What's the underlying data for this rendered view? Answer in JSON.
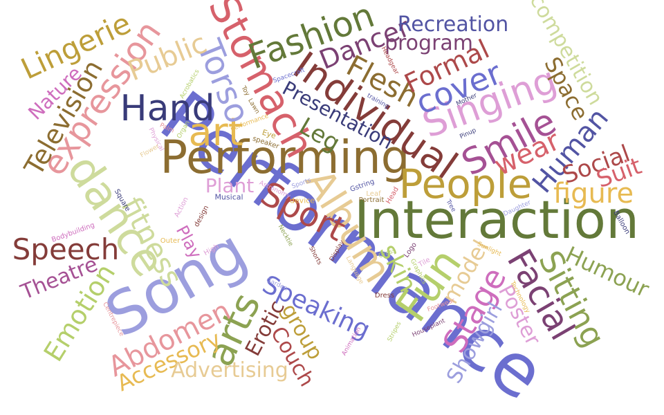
{
  "words": [
    {
      "text": "Performance",
      "color": "#6b6ecf"
    },
    {
      "text": "Interaction",
      "color": "#637939"
    },
    {
      "text": "Performing",
      "color": "#8c6d31"
    },
    {
      "text": "Song",
      "color": "#9c9ede"
    },
    {
      "text": "People",
      "color": "#bd9e39"
    },
    {
      "text": "Individual",
      "color": "#843c39"
    },
    {
      "text": "Stomach",
      "color": "#d6616b"
    },
    {
      "text": "Smile",
      "color": "#a55194"
    },
    {
      "text": "Singing",
      "color": "#de9ed6"
    },
    {
      "text": "Album",
      "color": "#e7cb94"
    },
    {
      "text": "Sport",
      "color": "#ad494a"
    },
    {
      "text": "Fun",
      "color": "#b5cf6b"
    },
    {
      "text": "dance",
      "color": "#cedb9c"
    },
    {
      "text": "Hand",
      "color": "#393b79"
    },
    {
      "text": "art",
      "color": "#e7ba52"
    },
    {
      "text": "Fashion",
      "color": "#637939"
    },
    {
      "text": "expression",
      "color": "#e7969c"
    },
    {
      "text": "Human",
      "color": "#5254a3"
    },
    {
      "text": "Facial",
      "color": "#7b4173"
    },
    {
      "text": "arts",
      "color": "#8ca252"
    },
    {
      "text": "Stage",
      "color": "#ce6dbd"
    },
    {
      "text": "Sitting",
      "color": "#8ca252"
    },
    {
      "text": "Torso",
      "color": "#9c9ede"
    },
    {
      "text": "cover",
      "color": "#6b6ecf"
    },
    {
      "text": "Flesh",
      "color": "#8c6d31"
    },
    {
      "text": "Formal",
      "color": "#ad494a"
    },
    {
      "text": "Dancer",
      "color": "#7b4173"
    },
    {
      "text": "Lingerie",
      "color": "#bd9e39"
    },
    {
      "text": "Public",
      "color": "#e7cb94"
    },
    {
      "text": "Speech",
      "color": "#843c39"
    },
    {
      "text": "fitness",
      "color": "#cedb9c"
    },
    {
      "text": "Television",
      "color": "#8c6d31"
    },
    {
      "text": "wear",
      "color": "#d6616b"
    },
    {
      "text": "figure",
      "color": "#e7ba52"
    },
    {
      "text": "Social",
      "color": "#ad494a"
    },
    {
      "text": "Suit",
      "color": "#d6616b"
    },
    {
      "text": "Speaking",
      "color": "#6b6ecf"
    },
    {
      "text": "Emotion",
      "color": "#b5cf6b"
    },
    {
      "text": "Abdomen",
      "color": "#e7969c"
    },
    {
      "text": "Humour",
      "color": "#8ca252"
    },
    {
      "text": "Recreation",
      "color": "#5254a3"
    },
    {
      "text": "program",
      "color": "#7b4173"
    },
    {
      "text": "competition",
      "color": "#cedb9c"
    },
    {
      "text": "Space",
      "color": "#8c6d31"
    },
    {
      "text": "Presentation",
      "color": "#393b79"
    },
    {
      "text": "Leg",
      "color": "#637939"
    },
    {
      "text": "Nature",
      "color": "#ce6dbd"
    },
    {
      "text": "Theatre",
      "color": "#a55194"
    },
    {
      "text": "Plant",
      "color": "#de9ed6"
    },
    {
      "text": "skin",
      "color": "#b5cf6b"
    },
    {
      "text": "model",
      "color": "#e7cb94"
    },
    {
      "text": "Showgirl",
      "color": "#9c9ede"
    },
    {
      "text": "Poster",
      "color": "#de9ed6"
    },
    {
      "text": "Accessory",
      "color": "#e7ba52"
    },
    {
      "text": "Advertising",
      "color": "#e7cb94"
    },
    {
      "text": "Erotic",
      "color": "#843c39"
    },
    {
      "text": "group",
      "color": "#bd9e39"
    },
    {
      "text": "Couch",
      "color": "#ad494a"
    },
    {
      "text": "Play",
      "color": "#ce6dbd"
    },
    {
      "text": "Musical",
      "color": "#5254a3"
    },
    {
      "text": "device",
      "color": "#e7ba52"
    },
    {
      "text": "Portrait",
      "color": "#8c6d31"
    },
    {
      "text": "Dress",
      "color": "#843c39"
    },
    {
      "text": "Bodybuilding",
      "color": "#ce6dbd"
    },
    {
      "text": "Outer",
      "color": "#e7ba52"
    },
    {
      "text": "Square",
      "color": "#393b79"
    },
    {
      "text": "Balloon",
      "color": "#393b79"
    },
    {
      "text": "Tree",
      "color": "#5254a3"
    },
    {
      "text": "Daughter",
      "color": "#9c9ede"
    },
    {
      "text": "Pinup",
      "color": "#393b79"
    },
    {
      "text": "Mother",
      "color": "#393b79"
    },
    {
      "text": "Gstring",
      "color": "#5254a3"
    },
    {
      "text": "Sports",
      "color": "#9c9ede"
    },
    {
      "text": "Astronomy",
      "color": "#de9ed6"
    },
    {
      "text": "speaker",
      "color": "#8c6d31"
    },
    {
      "text": "Eye",
      "color": "#bd9e39"
    },
    {
      "text": "performance",
      "color": "#e7ba52"
    },
    {
      "text": "Necktie",
      "color": "#8ca252"
    },
    {
      "text": "Display",
      "color": "#843c39"
    },
    {
      "text": "Language",
      "color": "#e7cb94"
    },
    {
      "text": "Logo",
      "color": "#7b4173"
    },
    {
      "text": "Graphics",
      "color": "#b5cf6b"
    },
    {
      "text": "Tile",
      "color": "#de9ed6"
    },
    {
      "text": "Leaf",
      "color": "#e7cb94"
    },
    {
      "text": "Head",
      "color": "#d6616b"
    },
    {
      "text": "Sunlight",
      "color": "#e7ba52"
    },
    {
      "text": "Technology",
      "color": "#e7ba52"
    },
    {
      "text": "Footwear",
      "color": "#e7969c"
    },
    {
      "text": "Houseplant",
      "color": "#7b4173"
    },
    {
      "text": "Animation",
      "color": "#ce6dbd"
    },
    {
      "text": "Garden",
      "color": "#9c9ede"
    },
    {
      "text": "Centrepiece",
      "color": "#e7969c"
    },
    {
      "text": "training",
      "color": "#5254a3"
    },
    {
      "text": "Headgear",
      "color": "#ad494a"
    },
    {
      "text": "Spacecraft",
      "color": "#6b6ecf"
    },
    {
      "text": "Acrobatics",
      "color": "#b5cf6b"
    },
    {
      "text": "Toy",
      "color": "#8c6d31"
    },
    {
      "text": "Lawn",
      "color": "#8c6d31"
    },
    {
      "text": "Palm",
      "color": "#e7969c"
    },
    {
      "text": "Physical",
      "color": "#de9ed6"
    },
    {
      "text": "Organ",
      "color": "#b5cf6b"
    },
    {
      "text": "Flower",
      "color": "#e7cb94"
    },
    {
      "text": "design",
      "color": "#843c39"
    },
    {
      "text": "High",
      "color": "#de9ed6"
    },
    {
      "text": "Action",
      "color": "#de9ed6"
    },
    {
      "text": "Shorts",
      "color": "#843c39"
    },
    {
      "text": "Grass",
      "color": "#b5cf6b"
    },
    {
      "text": "Stripes",
      "color": "#b5cf6b"
    }
  ]
}
